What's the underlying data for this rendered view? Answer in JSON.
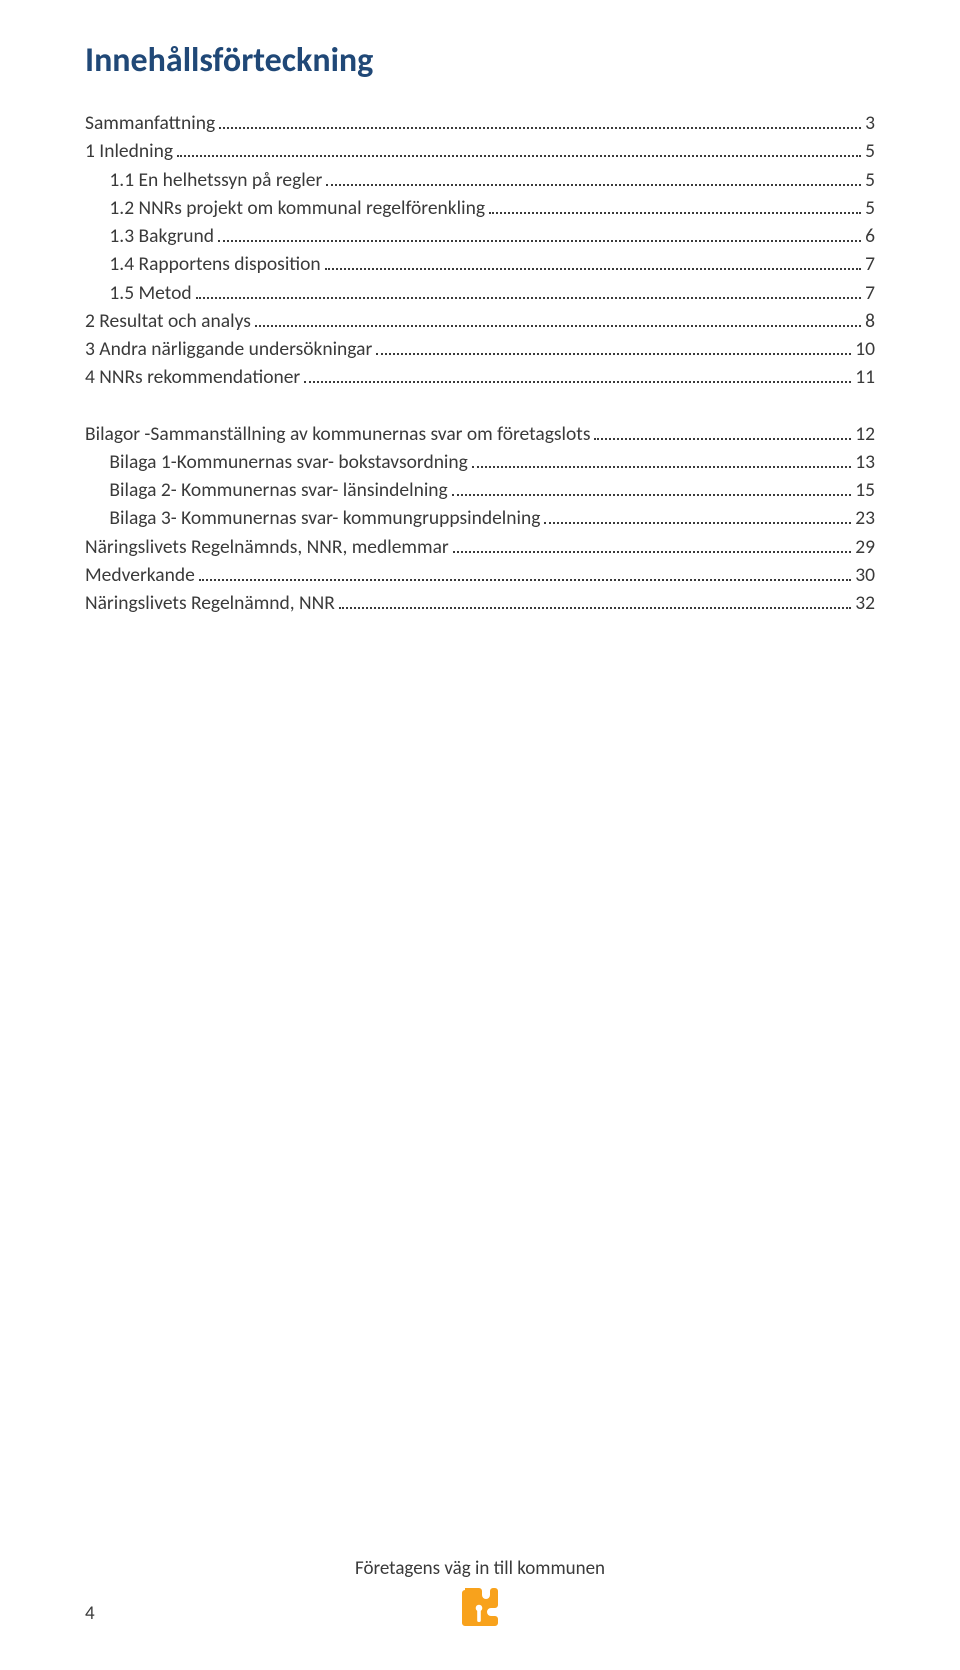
{
  "colors": {
    "heading": "#204877",
    "text": "#3a3a3a",
    "background": "#ffffff",
    "icon_outer": "#f8a21c",
    "icon_inner": "#ffffff"
  },
  "typography": {
    "title_fontsize": 34,
    "title_weight": 700,
    "body_fontsize": 19.5,
    "footer_fontsize": 19,
    "font_family": "Calibri, Arial, sans-serif"
  },
  "title": "Innehållsförteckning",
  "toc": [
    {
      "label": "Sammanfattning",
      "page": "3",
      "indent": 0,
      "group": 0
    },
    {
      "label": "1 Inledning",
      "page": "5",
      "indent": 0,
      "group": 0
    },
    {
      "label": " 1.1 En helhetssyn på regler",
      "page": "5",
      "indent": 1,
      "group": 0
    },
    {
      "label": " 1.2 NNRs projekt om kommunal regelförenkling",
      "page": "5",
      "indent": 1,
      "group": 0
    },
    {
      "label": " 1.3 Bakgrund",
      "page": "6",
      "indent": 1,
      "group": 0
    },
    {
      "label": " 1.4 Rapportens disposition",
      "page": "7",
      "indent": 1,
      "group": 0
    },
    {
      "label": " 1.5 Metod",
      "page": "7",
      "indent": 1,
      "group": 0
    },
    {
      "label": "2 Resultat och analys",
      "page": "8",
      "indent": 0,
      "group": 0
    },
    {
      "label": "3 Andra närliggande undersökningar",
      "page": "10",
      "indent": 0,
      "group": 0
    },
    {
      "label": "4 NNRs rekommendationer",
      "page": "11",
      "indent": 0,
      "group": 0
    },
    {
      "label": "Bilagor -Sammanställning av kommunernas svar om företagslots",
      "page": "12",
      "indent": 0,
      "group": 1
    },
    {
      "label": " Bilaga 1-Kommunernas svar- bokstavsordning",
      "page": "13",
      "indent": 1,
      "group": 1
    },
    {
      "label": " Bilaga 2- Kommunernas svar- länsindelning",
      "page": "15",
      "indent": 1,
      "group": 1
    },
    {
      "label": " Bilaga 3- Kommunernas svar- kommungruppsindelning",
      "page": "23",
      "indent": 1,
      "group": 1
    },
    {
      "label": "Näringslivets Regelnämnds, NNR, medlemmar",
      "page": "29",
      "indent": 0,
      "group": 1
    },
    {
      "label": "Medverkande",
      "page": "30",
      "indent": 0,
      "group": 1
    },
    {
      "label": "Näringslivets Regelnämnd, NNR",
      "page": "32",
      "indent": 0,
      "group": 1
    }
  ],
  "footer": {
    "page_number": "4",
    "text": "Företagens väg in till kommunen"
  }
}
